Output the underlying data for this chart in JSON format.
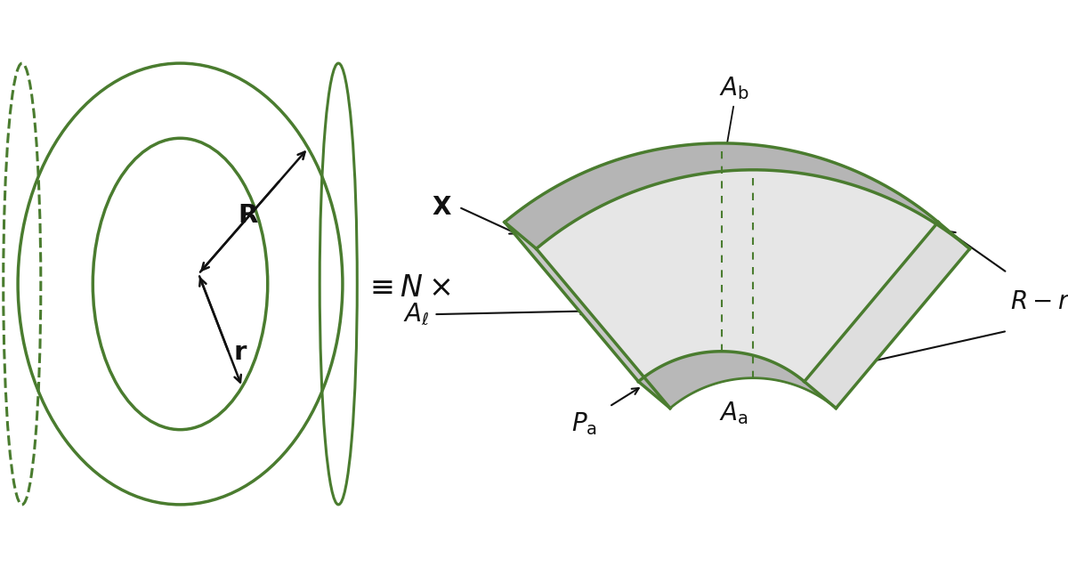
{
  "green_color": "#4a7c2f",
  "arrow_color": "#111111",
  "bg_color": "#ffffff",
  "lw_main": 2.2,
  "lw_border": 2.5,
  "face_top": "#b0b0b0",
  "face_front": "#e0e0e0",
  "face_side_left": "#d0d0d0",
  "face_bottom": "#b8b8b8",
  "face_back": "#d8d8d8"
}
